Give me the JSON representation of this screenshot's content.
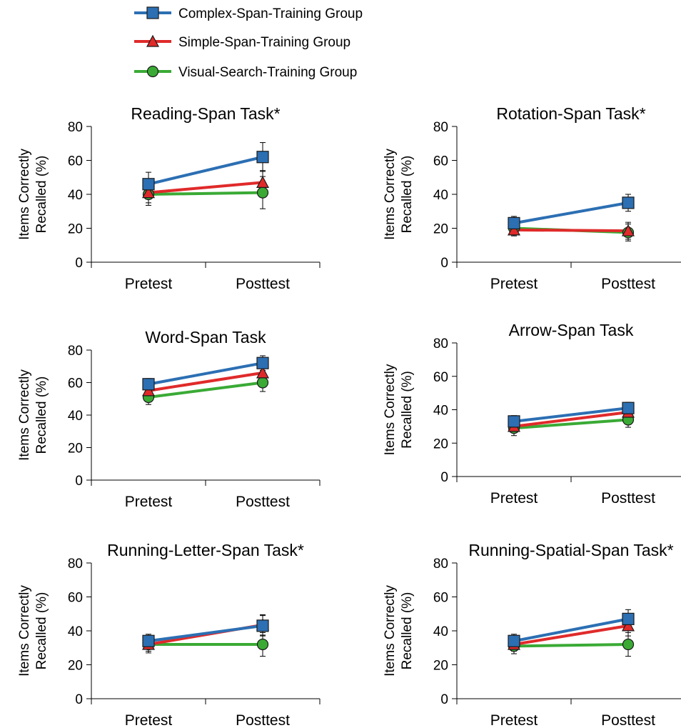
{
  "legend": [
    {
      "label": "Complex-Span-Training Group",
      "color": "#2c6fb3",
      "marker": "square"
    },
    {
      "label": "Simple-Span-Training Group",
      "color": "#e02a2a",
      "marker": "triangle"
    },
    {
      "label": "Visual-Search-Training Group",
      "color": "#3aaa35",
      "marker": "circle"
    }
  ],
  "chart_data": [
    {
      "type": "line",
      "title": "Reading-Span Task*",
      "ylabel": "Items Correctly Recalled (%)",
      "categories": [
        "Pretest",
        "Posttest"
      ],
      "ylim": [
        0,
        80
      ],
      "yticks": [
        0,
        20,
        40,
        60,
        80
      ],
      "series": [
        {
          "name": "Complex-Span-Training Group",
          "values": [
            46,
            62
          ],
          "error": [
            7,
            8.5
          ]
        },
        {
          "name": "Simple-Span-Training Group",
          "values": [
            41,
            47
          ],
          "error": [
            6,
            7
          ]
        },
        {
          "name": "Visual-Search-Training Group",
          "values": [
            40,
            41
          ],
          "error": [
            6.5,
            9.5
          ]
        }
      ]
    },
    {
      "type": "line",
      "title": "Rotation-Span Task*",
      "ylabel": "Items Correctly Recalled (%)",
      "categories": [
        "Pretest",
        "Posttest"
      ],
      "ylim": [
        0,
        80
      ],
      "yticks": [
        0,
        20,
        40,
        60,
        80
      ],
      "series": [
        {
          "name": "Complex-Span-Training Group",
          "values": [
            23,
            35
          ],
          "error": [
            4,
            5
          ]
        },
        {
          "name": "Simple-Span-Training Group",
          "values": [
            19,
            18.5
          ],
          "error": [
            3.5,
            5
          ]
        },
        {
          "name": "Visual-Search-Training Group",
          "values": [
            20,
            17.5
          ],
          "error": [
            4,
            5
          ]
        }
      ]
    },
    {
      "type": "line",
      "title": "Word-Span Task",
      "ylabel": "Items Correctly Recalled (%)",
      "categories": [
        "Pretest",
        "Posttest"
      ],
      "ylim": [
        0,
        80
      ],
      "yticks": [
        0,
        20,
        40,
        60,
        80
      ],
      "series": [
        {
          "name": "Complex-Span-Training Group",
          "values": [
            59,
            72
          ],
          "error": [
            3.5,
            4.5
          ]
        },
        {
          "name": "Simple-Span-Training Group",
          "values": [
            55,
            66
          ],
          "error": [
            3.5,
            4.5
          ]
        },
        {
          "name": "Visual-Search-Training Group",
          "values": [
            51,
            60
          ],
          "error": [
            4.5,
            5.5
          ]
        }
      ]
    },
    {
      "type": "line",
      "title": "Arrow-Span Task",
      "ylabel": "Items Correctly Recalled (%)",
      "categories": [
        "Pretest",
        "Posttest"
      ],
      "ylim": [
        0,
        80
      ],
      "yticks": [
        0,
        20,
        40,
        60,
        80
      ],
      "series": [
        {
          "name": "Complex-Span-Training Group",
          "values": [
            33,
            41
          ],
          "error": [
            3.5,
            3.5
          ]
        },
        {
          "name": "Simple-Span-Training Group",
          "values": [
            30,
            38.5
          ],
          "error": [
            3.5,
            3.5
          ]
        },
        {
          "name": "Visual-Search-Training Group",
          "values": [
            29,
            34
          ],
          "error": [
            4.5,
            4.5
          ]
        }
      ]
    },
    {
      "type": "line",
      "title": "Running-Letter-Span Task*",
      "ylabel": "Items Correctly Recalled (%)",
      "categories": [
        "Pretest",
        "Posttest"
      ],
      "ylim": [
        0,
        80
      ],
      "yticks": [
        0,
        20,
        40,
        60,
        80
      ],
      "series": [
        {
          "name": "Complex-Span-Training Group",
          "values": [
            34,
            43
          ],
          "error": [
            4,
            6
          ]
        },
        {
          "name": "Simple-Span-Training Group",
          "values": [
            32,
            43.5
          ],
          "error": [
            4,
            6
          ]
        },
        {
          "name": "Visual-Search-Training Group",
          "values": [
            32,
            32
          ],
          "error": [
            5,
            7
          ]
        }
      ]
    },
    {
      "type": "line",
      "title": "Running-Spatial-Span Task*",
      "ylabel": "Items Correctly Recalled (%)",
      "categories": [
        "Pretest",
        "Posttest"
      ],
      "ylim": [
        0,
        80
      ],
      "yticks": [
        0,
        20,
        40,
        60,
        80
      ],
      "series": [
        {
          "name": "Complex-Span-Training Group",
          "values": [
            34,
            47
          ],
          "error": [
            4,
            5.5
          ]
        },
        {
          "name": "Simple-Span-Training Group",
          "values": [
            32,
            43
          ],
          "error": [
            4,
            6
          ]
        },
        {
          "name": "Visual-Search-Training Group",
          "values": [
            31,
            32
          ],
          "error": [
            4.5,
            7
          ]
        }
      ]
    }
  ]
}
